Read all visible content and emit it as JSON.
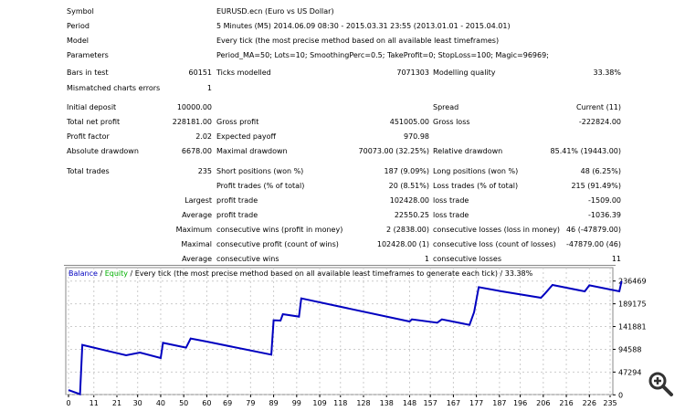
{
  "header": {
    "symbol_label": "Symbol",
    "symbol": "EURUSD.ecn (Euro vs US Dollar)",
    "period_label": "Period",
    "period": "5 Minutes (M5) 2014.06.09 08:30 - 2015.03.31 23:55 (2013.01.01 - 2015.04.01)",
    "model_label": "Model",
    "model": "Every tick (the most precise method based on all available least timeframes)",
    "parameters_label": "Parameters",
    "parameters": "Period_MA=50; Lots=10; SmoothingPerc=0.5; TakeProfit=0; StopLoss=100; Magic=96969;"
  },
  "stats": {
    "bars_label": "Bars in test",
    "bars": "60151",
    "ticks_label": "Ticks modelled",
    "ticks": "7071303",
    "quality_label": "Modelling quality",
    "quality": "33.38%",
    "mismatch_label": "Mismatched charts errors",
    "mismatch": "1",
    "deposit_label": "Initial deposit",
    "deposit": "10000.00",
    "spread_label": "Spread",
    "spread": "Current (11)",
    "net_label": "Total net profit",
    "net": "228181.00",
    "gross_profit_label": "Gross profit",
    "gross_profit": "451005.00",
    "gross_loss_label": "Gross loss",
    "gross_loss": "-222824.00",
    "pf_label": "Profit factor",
    "pf": "2.02",
    "ep_label": "Expected payoff",
    "ep": "970.98",
    "abs_dd_label": "Absolute drawdown",
    "abs_dd": "6678.00",
    "max_dd_label": "Maximal drawdown",
    "max_dd": "70073.00 (32.25%)",
    "rel_dd_label": "Relative drawdown",
    "rel_dd": "85.41% (19443.00)",
    "trades_label": "Total trades",
    "trades": "235",
    "short_label": "Short positions (won %)",
    "short": "187 (9.09%)",
    "long_label": "Long positions (won %)",
    "long": "48 (6.25%)",
    "pt_label": "Profit trades (% of total)",
    "pt": "20 (8.51%)",
    "lt_label": "Loss trades (% of total)",
    "lt": "215 (91.49%)",
    "largest": "Largest",
    "lpt_label": "profit trade",
    "lpt": "102428.00",
    "llt_label": "loss trade",
    "llt": "-1509.00",
    "average": "Average",
    "apt_label": "profit trade",
    "apt": "22550.25",
    "alt_label": "loss trade",
    "alt": "-1036.39",
    "maximum": "Maximum",
    "mcw_label": "consecutive wins (profit in money)",
    "mcw": "2 (2838.00)",
    "mcl_label": "consecutive losses (loss in money)",
    "mcl": "46 (-47879.00)",
    "maximal": "Maximal",
    "mcp_label": "consecutive profit (count of wins)",
    "mcp": "102428.00 (1)",
    "mclc_label": "consecutive loss (count of losses)",
    "mclc": "-47879.00 (46)",
    "average2": "Average",
    "acw_label": "consecutive wins",
    "acw": "1",
    "acl_label": "consecutive losses",
    "acl": "11"
  },
  "chart_data": {
    "type": "line",
    "legend": {
      "balance": "Balance",
      "sep1": " / ",
      "equity": "Equity",
      "rest": " / Every tick (the most precise method based on all available least timeframes to generate each tick) / 33.38%"
    },
    "colors": {
      "balance": "#0000c0",
      "equity": "#00b000"
    },
    "x_ticks": [
      0,
      11,
      21,
      30,
      40,
      50,
      60,
      69,
      79,
      89,
      99,
      109,
      118,
      128,
      138,
      148,
      157,
      167,
      177,
      187,
      196,
      206,
      216,
      226,
      235
    ],
    "y_ticks": [
      0,
      47294,
      94588,
      141881,
      189175,
      236469
    ],
    "xlim": [
      0,
      240
    ],
    "ylim": [
      0,
      236469
    ],
    "grid": true,
    "series": [
      {
        "name": "Balance",
        "points": [
          [
            0,
            10000
          ],
          [
            5,
            1300
          ],
          [
            6,
            103700
          ],
          [
            25,
            82200
          ],
          [
            31,
            87900
          ],
          [
            40,
            76500
          ],
          [
            41,
            108100
          ],
          [
            51,
            98000
          ],
          [
            53,
            117000
          ],
          [
            60,
            110600
          ],
          [
            88,
            83500
          ],
          [
            89,
            155000
          ],
          [
            92,
            154300
          ],
          [
            93,
            167500
          ],
          [
            100,
            162500
          ],
          [
            101,
            200400
          ],
          [
            148,
            152400
          ],
          [
            149,
            156800
          ],
          [
            160,
            149800
          ],
          [
            162,
            156800
          ],
          [
            174,
            145400
          ],
          [
            176,
            172000
          ],
          [
            178,
            223800
          ],
          [
            188,
            215000
          ],
          [
            205,
            201700
          ],
          [
            207,
            211800
          ],
          [
            210,
            228300
          ],
          [
            224,
            215000
          ],
          [
            226,
            227600
          ],
          [
            239,
            215000
          ],
          [
            240,
            236469
          ]
        ]
      }
    ]
  }
}
